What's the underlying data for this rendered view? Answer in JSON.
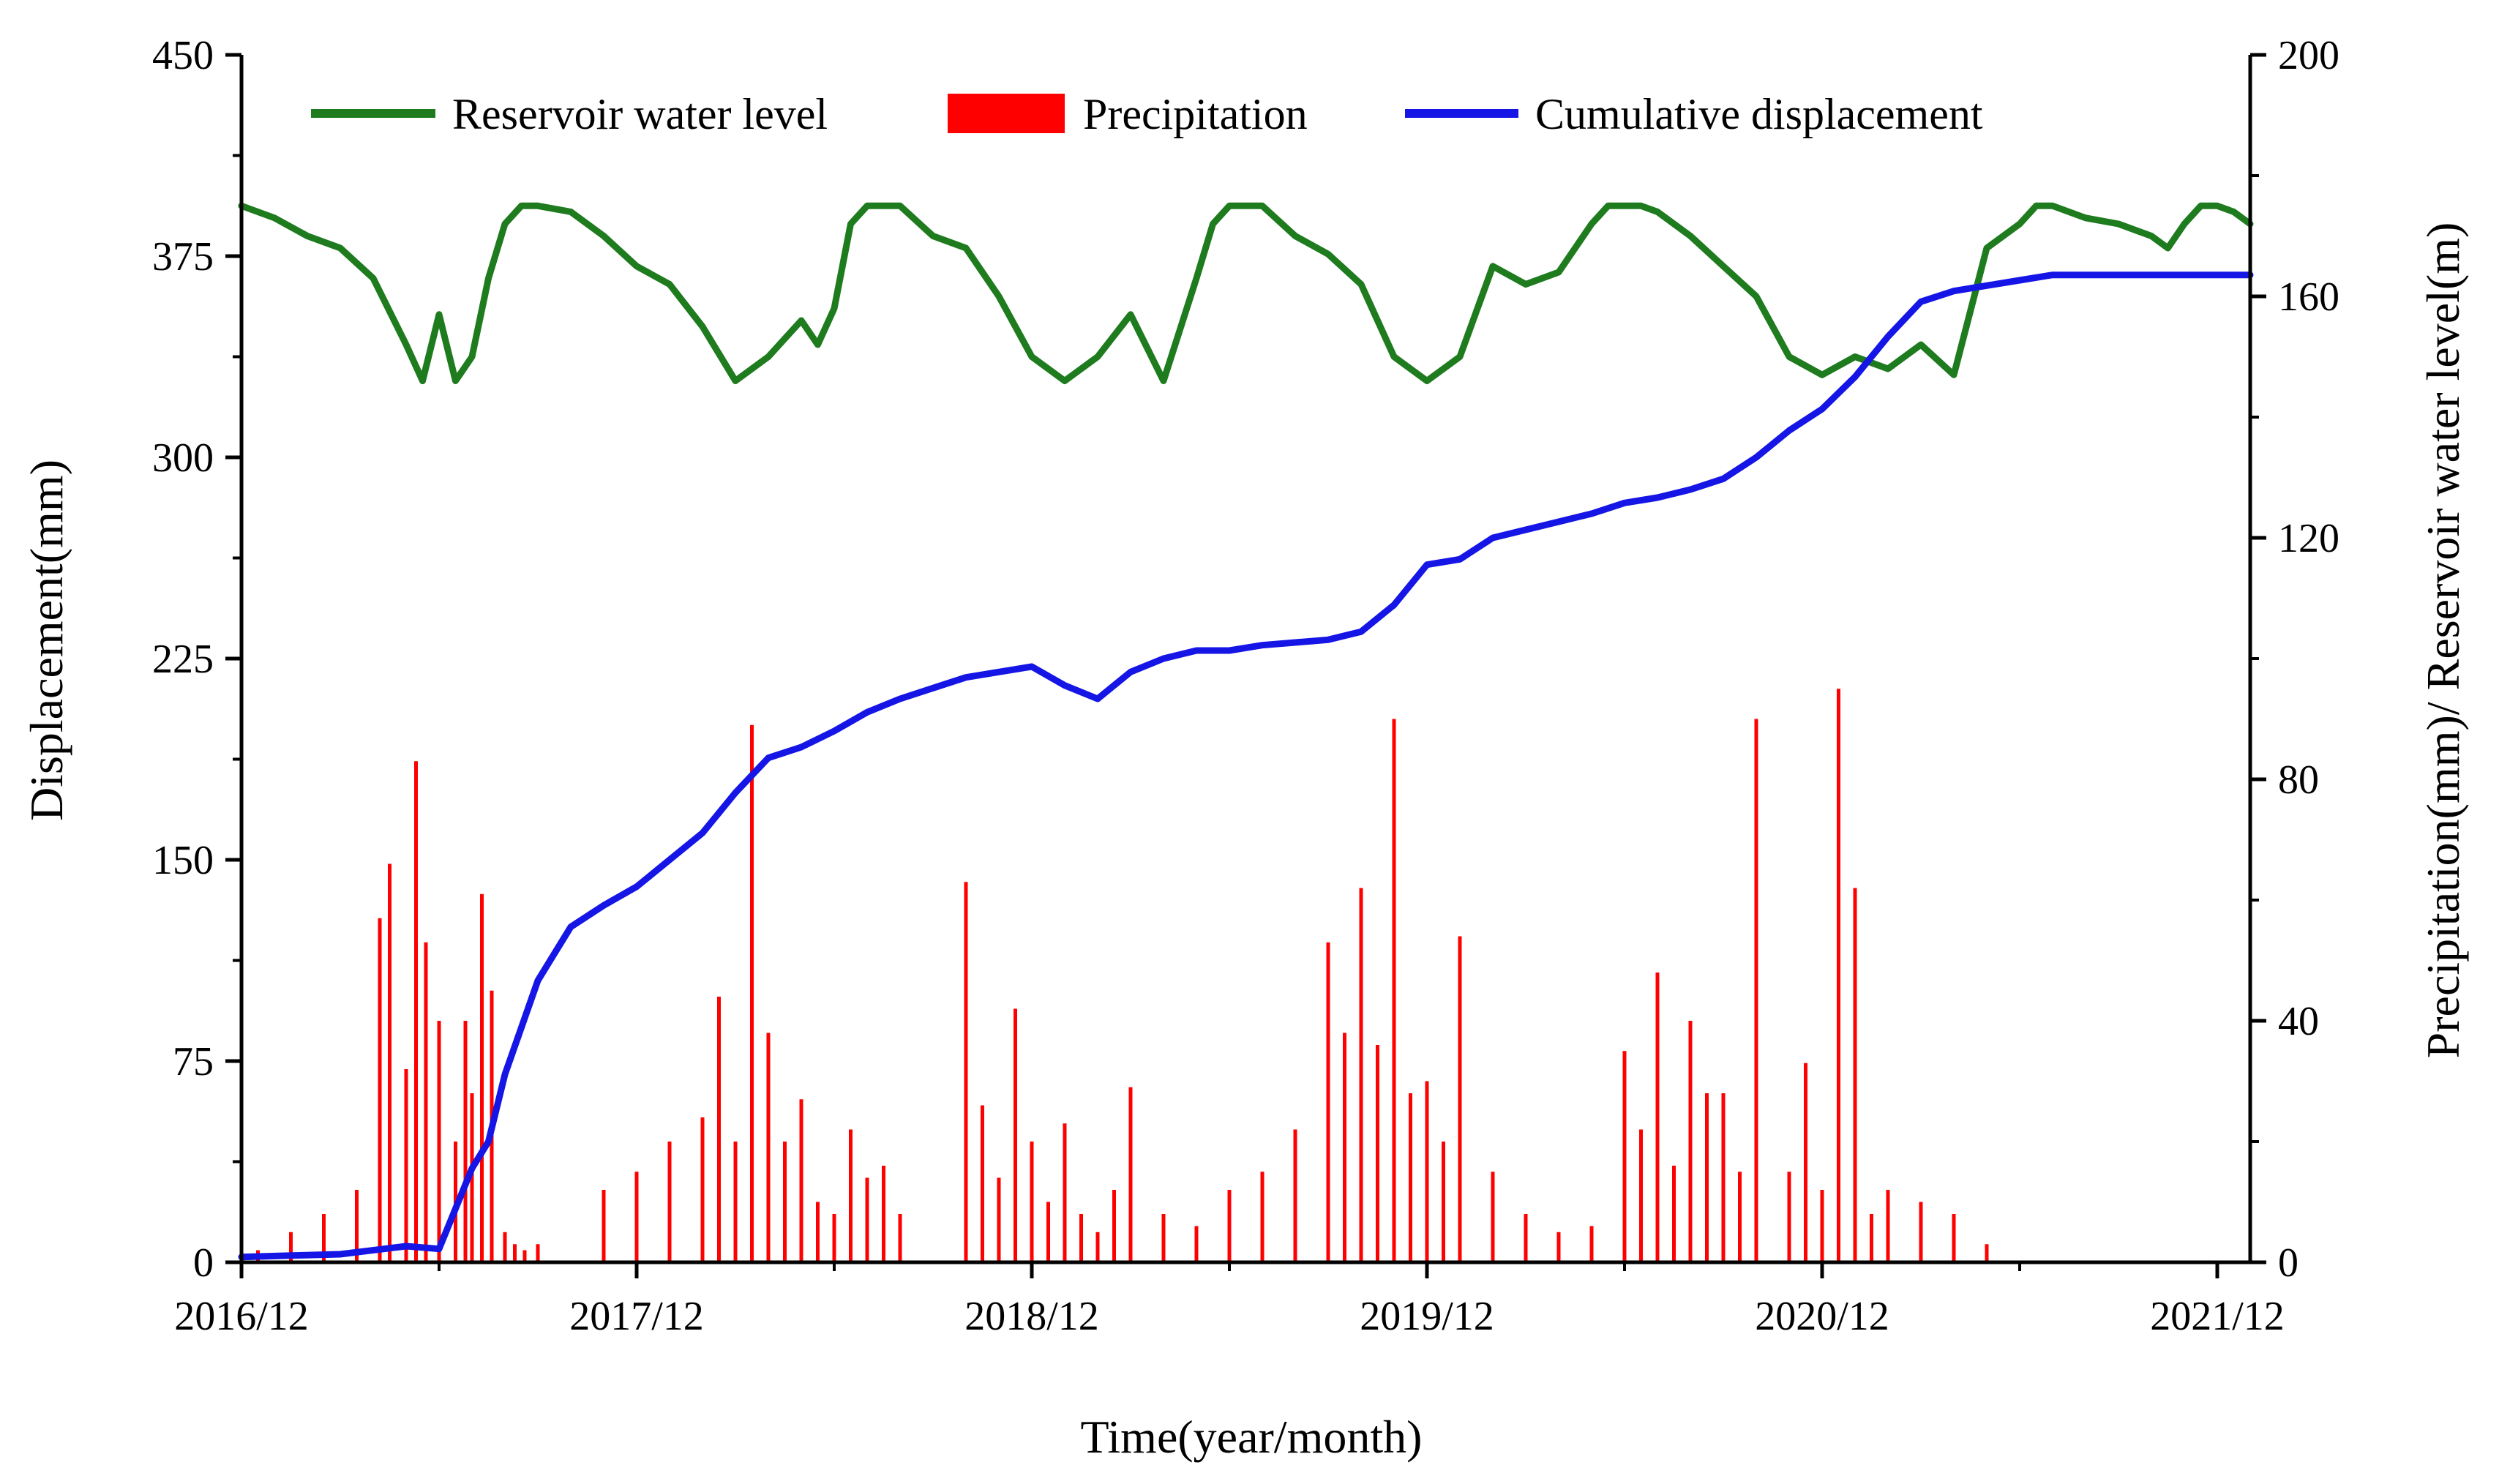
{
  "chart_data": {
    "type": "line",
    "title": "",
    "xlabel": "Time(year/month)",
    "ylabel_left": "Displacement(mm)",
    "ylabel_right": "Precipitation(mm)/ Reservoir water level(m)",
    "x_ticks": [
      "2016/12",
      "2017/12",
      "2018/12",
      "2019/12",
      "2020/12",
      "2021/12"
    ],
    "x_range_months": [
      0,
      61
    ],
    "y_left": {
      "range": [
        0,
        450
      ],
      "ticks": [
        0,
        75,
        150,
        225,
        300,
        375,
        450
      ]
    },
    "y_right": {
      "range": [
        0,
        200
      ],
      "ticks": [
        0,
        40,
        80,
        120,
        160,
        200
      ]
    },
    "legend": {
      "position": "top",
      "items": [
        {
          "label": "Reservoir water level",
          "color": "#1e7b1e",
          "style": "line"
        },
        {
          "label": "Precipitation",
          "color": "#ff0000",
          "style": "bar"
        },
        {
          "label": "Cumulative displacement",
          "color": "#1515e6",
          "style": "line"
        }
      ]
    },
    "series": [
      {
        "name": "Reservoir water level",
        "axis": "right",
        "color": "#1e7b1e",
        "x_months": [
          0,
          1,
          2,
          3,
          4,
          5,
          5.5,
          6,
          6.5,
          7,
          7.5,
          8,
          8.5,
          9,
          10,
          11,
          12,
          13,
          14,
          15,
          16,
          17,
          17.5,
          18,
          18.5,
          19,
          19.5,
          20,
          21,
          22,
          23,
          24,
          25,
          26,
          27,
          28,
          29,
          29.5,
          30,
          30.5,
          31,
          32,
          33,
          34,
          35,
          36,
          37,
          38,
          39,
          40,
          41,
          41.5,
          42,
          42.5,
          43,
          43.5,
          44,
          45,
          46,
          47,
          48,
          49,
          50,
          51,
          52,
          53,
          53.5,
          54,
          54.5,
          55,
          56,
          57,
          58,
          58.5,
          59,
          59.5,
          60,
          60.5,
          61
        ],
        "values": [
          175,
          173,
          170,
          168,
          163,
          152,
          146,
          157,
          146,
          150,
          163,
          172,
          175,
          175,
          174,
          170,
          165,
          162,
          155,
          146,
          150,
          156,
          152,
          158,
          172,
          175,
          175,
          175,
          170,
          168,
          160,
          150,
          146,
          150,
          157,
          146,
          163,
          172,
          175,
          175,
          175,
          170,
          167,
          162,
          150,
          146,
          150,
          165,
          162,
          164,
          172,
          175,
          175,
          175,
          174,
          172,
          170,
          165,
          160,
          150,
          147,
          150,
          148,
          152,
          147,
          168,
          170,
          172,
          175,
          175,
          173,
          172,
          170,
          168,
          172,
          175,
          175,
          174,
          172
        ]
      },
      {
        "name": "Cumulative displacement",
        "axis": "left",
        "color": "#1515e6",
        "x_months": [
          0,
          3,
          5,
          6,
          7,
          7.5,
          8,
          9,
          10,
          11,
          12,
          13,
          14,
          15,
          16,
          17,
          18,
          19,
          20,
          21,
          22,
          23,
          24,
          25,
          26,
          27,
          28,
          29,
          30,
          31,
          32,
          33,
          34,
          35,
          36,
          37,
          38,
          39,
          40,
          41,
          42,
          43,
          44,
          45,
          46,
          47,
          48,
          49,
          50,
          51,
          52,
          53,
          54,
          55,
          56,
          57,
          58,
          59,
          60,
          61
        ],
        "values": [
          2,
          3,
          6,
          5,
          35,
          45,
          70,
          105,
          125,
          133,
          140,
          150,
          160,
          175,
          188,
          192,
          198,
          205,
          210,
          214,
          218,
          220,
          222,
          215,
          210,
          220,
          225,
          228,
          228,
          230,
          231,
          232,
          235,
          245,
          260,
          262,
          270,
          273,
          276,
          279,
          283,
          285,
          288,
          292,
          300,
          310,
          318,
          330,
          345,
          358,
          362,
          364,
          366,
          368,
          368,
          368,
          368,
          368,
          368,
          368
        ]
      },
      {
        "name": "Precipitation",
        "axis": "right",
        "color": "#ff0000",
        "type": "bar",
        "x_months": [
          0.5,
          1.5,
          2.5,
          3.5,
          4.2,
          4.5,
          5.0,
          5.3,
          5.6,
          6.0,
          6.5,
          6.8,
          7.0,
          7.3,
          7.6,
          8.0,
          8.3,
          8.6,
          9.0,
          11.0,
          12.0,
          13.0,
          14.0,
          14.5,
          15.0,
          15.5,
          16.0,
          16.5,
          17.0,
          17.5,
          18.0,
          18.5,
          19.0,
          19.5,
          20.0,
          22.0,
          22.5,
          23.0,
          23.5,
          24.0,
          24.5,
          25.0,
          25.5,
          26.0,
          26.5,
          27.0,
          28.0,
          29.0,
          30.0,
          31.0,
          32.0,
          33.0,
          33.5,
          34.0,
          34.5,
          35.0,
          35.5,
          36.0,
          36.5,
          37.0,
          38.0,
          39.0,
          40.0,
          41.0,
          42.0,
          42.5,
          43.0,
          43.5,
          44.0,
          44.5,
          45.0,
          45.5,
          46.0,
          47.0,
          47.5,
          48.0,
          48.5,
          49.0,
          49.5,
          50.0,
          51.0,
          52.0,
          53.0
        ],
        "values": [
          2,
          5,
          8,
          12,
          57,
          66,
          32,
          83,
          53,
          40,
          20,
          40,
          28,
          61,
          45,
          5,
          3,
          2,
          3,
          12,
          15,
          20,
          24,
          44,
          20,
          89,
          38,
          20,
          27,
          10,
          8,
          22,
          14,
          16,
          8,
          63,
          26,
          14,
          42,
          20,
          10,
          23,
          8,
          5,
          12,
          29,
          8,
          6,
          12,
          15,
          22,
          53,
          38,
          62,
          36,
          90,
          28,
          30,
          20,
          54,
          15,
          8,
          5,
          6,
          35,
          22,
          48,
          16,
          40,
          28,
          28,
          15,
          90,
          15,
          33,
          12,
          95,
          62,
          8,
          12,
          10,
          8,
          3
        ]
      }
    ]
  }
}
